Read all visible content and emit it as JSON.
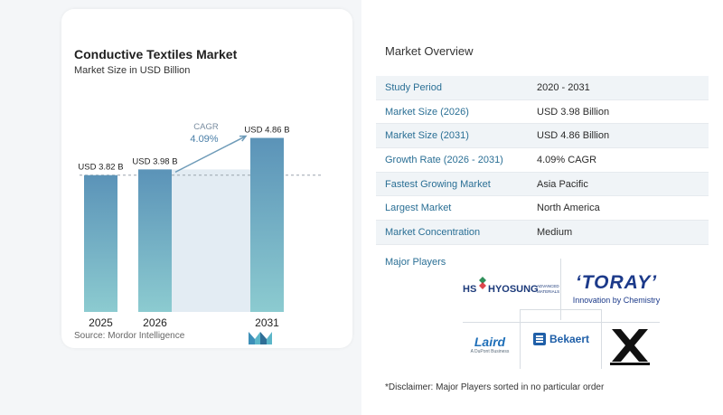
{
  "chart": {
    "title": "Conductive Textiles Market",
    "subtitle": "Market Size in USD Billion",
    "source": "Source:  Mordor Intelligence",
    "cagr_label": "CAGR",
    "cagr_value": "4.09%"
  },
  "chart_data": {
    "type": "bar",
    "categories": [
      "2025",
      "2026",
      "2031"
    ],
    "values": [
      3.82,
      3.98,
      4.86
    ],
    "data_labels": [
      "USD 3.82 B",
      "USD 3.98 B",
      "USD 4.86 B"
    ],
    "title": "Conductive Textiles Market",
    "subtitle": "Market Size in USD Billion",
    "xlabel": "",
    "ylabel": "",
    "ylim": [
      0,
      5.05
    ],
    "grid": false,
    "annotation": "CAGR 4.09%",
    "colors": {
      "bar_top": "#5b93b8",
      "bar_bottom": "#8ccbd0",
      "arrow": "#6e9bb8",
      "band": "#e3ecf3"
    }
  },
  "overview": {
    "title": "Market Overview",
    "rows": [
      {
        "label": "Study Period",
        "value": "2020 - 2031"
      },
      {
        "label": "Market Size (2026)",
        "value": "USD 3.98 Billion"
      },
      {
        "label": "Market Size (2031)",
        "value": "USD 4.86 Billion"
      },
      {
        "label": "Growth Rate (2026 - 2031)",
        "value": "4.09% CAGR"
      },
      {
        "label": "Fastest Growing Market",
        "value": "Asia Pacific"
      },
      {
        "label": "Largest Market",
        "value": "North America"
      },
      {
        "label": "Market Concentration",
        "value": "Medium"
      }
    ]
  },
  "players": {
    "title": "Major Players",
    "hyosung": {
      "hs": "HS",
      "name": "HYOSUNG",
      "tag1": "ADVANCED",
      "tag2": "MATERIALS"
    },
    "toray": {
      "name": "TORAY",
      "tagline": "Innovation by Chemistry"
    },
    "laird": {
      "name": "Laird",
      "tagline": "A DuPont Business"
    },
    "bekaert": {
      "name": "Bekaert"
    }
  },
  "disclaimer": "*Disclaimer: Major Players sorted in no particular order"
}
